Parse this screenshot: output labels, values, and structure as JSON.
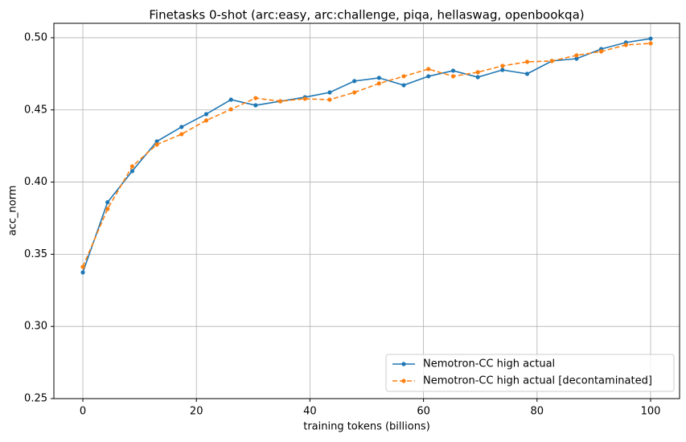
{
  "chart_data": {
    "type": "line",
    "title": "Finetasks 0-shot (arc:easy, arc:challenge, piqa, hellaswag, openbookqa)",
    "x_label": "training tokens (billions)",
    "y_label": "acc_norm",
    "x": [
      0,
      4.35,
      8.7,
      13.04,
      17.39,
      21.74,
      26.09,
      30.43,
      34.78,
      39.13,
      43.48,
      47.83,
      52.17,
      56.52,
      60.87,
      65.22,
      69.57,
      73.91,
      78.26,
      82.61,
      86.96,
      91.3,
      95.65,
      100
    ],
    "series": [
      {
        "name": "Nemotron-CC high actual",
        "color": "#1f77b4",
        "linestyle": "solid",
        "values": [
          0.3374,
          0.386,
          0.4076,
          0.4282,
          0.4382,
          0.4471,
          0.4571,
          0.4532,
          0.456,
          0.4588,
          0.4621,
          0.47,
          0.4722,
          0.4671,
          0.4733,
          0.4772,
          0.4727,
          0.4777,
          0.475,
          0.4839,
          0.4855,
          0.4922,
          0.4967,
          0.4994
        ]
      },
      {
        "name": "Nemotron-CC high actual [decontaminated]",
        "color": "#ff7f0e",
        "linestyle": "dashed",
        "values": [
          0.3413,
          0.3814,
          0.4109,
          0.426,
          0.4332,
          0.4427,
          0.4504,
          0.4582,
          0.456,
          0.4577,
          0.4571,
          0.4621,
          0.4683,
          0.4733,
          0.4783,
          0.4733,
          0.4761,
          0.4805,
          0.4833,
          0.4839,
          0.4878,
          0.4905,
          0.495,
          0.4961
        ]
      }
    ],
    "xlim": [
      -5.1,
      105.1
    ],
    "xticks": [
      0,
      20,
      40,
      60,
      80,
      100
    ],
    "ylim": [
      0.25,
      0.51
    ],
    "yticks": [
      0.25,
      {
        "value": 0.3,
        "label": "0.30"
      },
      0.35,
      {
        "value": 0.4,
        "label": "0.40"
      },
      0.45,
      {
        "value": 0.5,
        "label": "0.50"
      }
    ],
    "grid": true,
    "legend": "lower right"
  }
}
